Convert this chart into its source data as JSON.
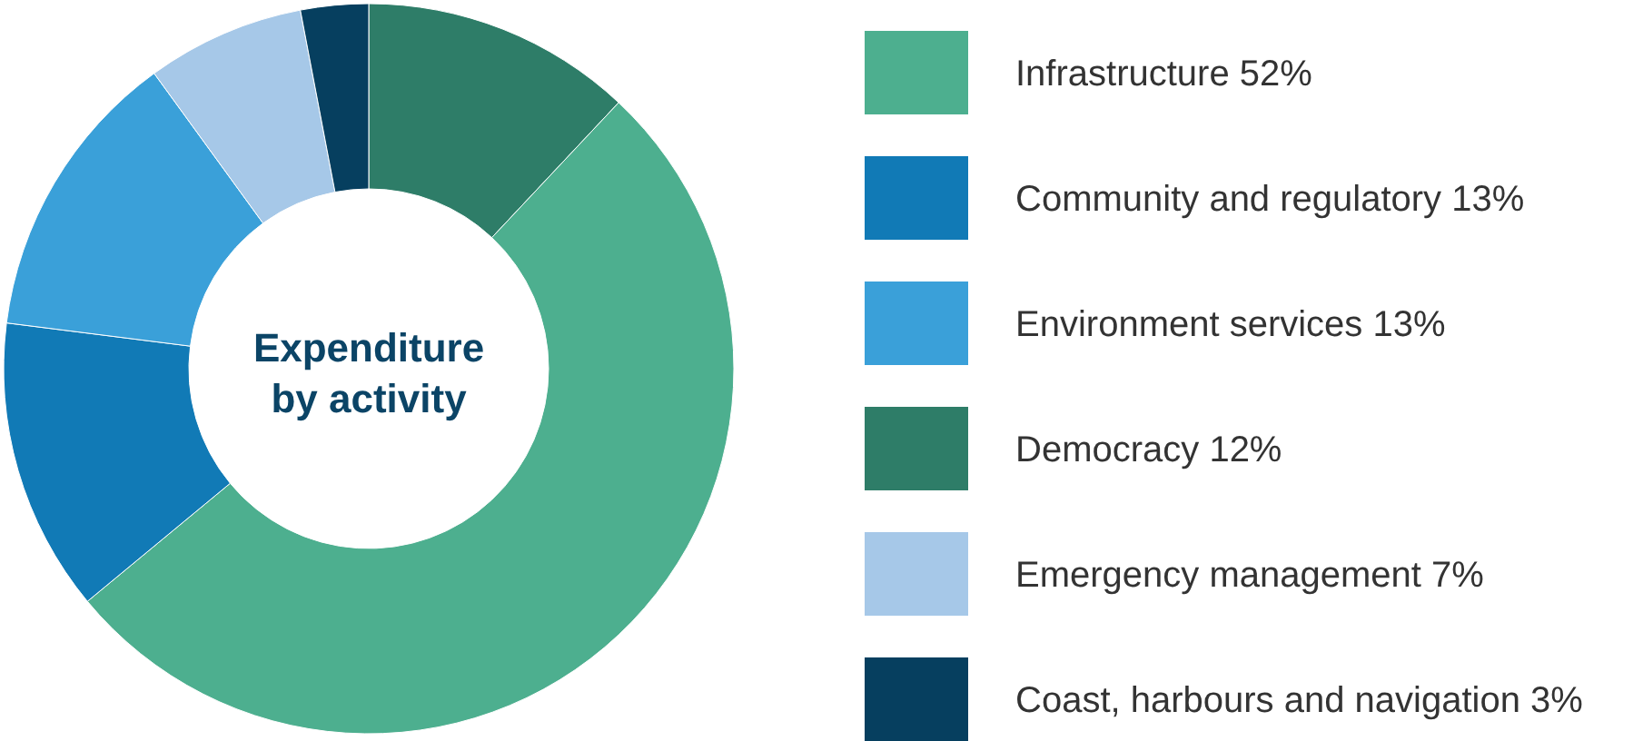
{
  "chart_data": {
    "type": "donut",
    "title": "Expenditure by activity",
    "categories": [
      "Democracy 12%",
      "Infrastructure 52%",
      "Community and regulatory 13%",
      "Environment services 13%",
      "Emergency management 7%",
      "Coast, harbours and navigation 3%"
    ],
    "values": [
      12,
      52,
      13,
      13,
      7,
      3
    ],
    "colors": [
      "#2e7d68",
      "#4daf8f",
      "#117ab6",
      "#3aa0d9",
      "#a6c8e8",
      "#063f5f"
    ],
    "legend": "right"
  }
}
